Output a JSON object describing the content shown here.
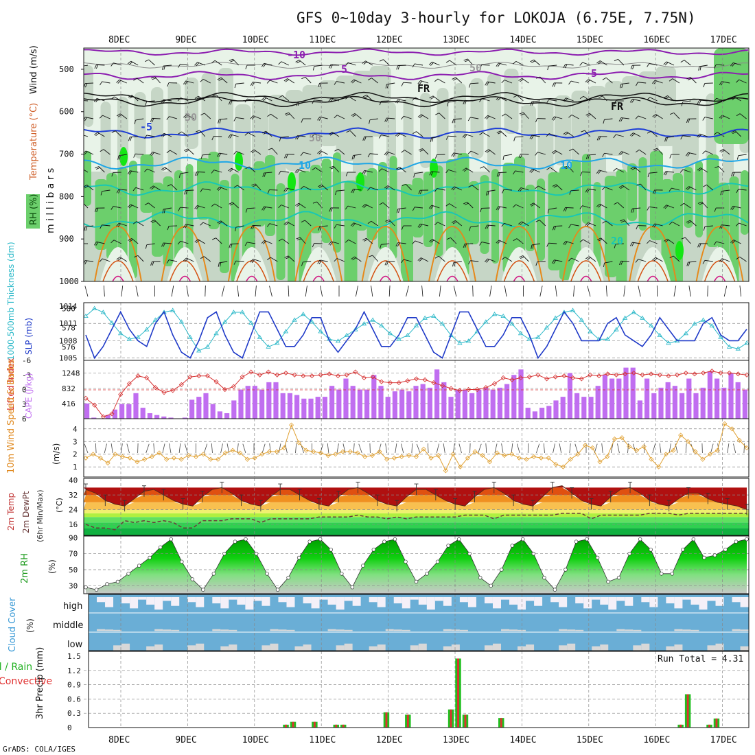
{
  "title": "GFS 0~10day 3-hourly for LOKOJA (6.75E, 7.75N)",
  "footer": "GrADS: COLA/IGES",
  "run_total": "Run Total = 4.31",
  "dates": [
    "8DEC",
    "9DEC",
    "10DEC",
    "11DEC",
    "12DEC",
    "13DEC",
    "14DEC",
    "15DEC",
    "16DEC",
    "17DEC"
  ],
  "colors": {
    "rh_light": "#e8f3e8",
    "rh_mid": "#c6d6c6",
    "rh_green": "#6ccf6c",
    "rh_bright": "#14e614",
    "temp_violet": "#8c1fb0",
    "temp_blue": "#1f3fd6",
    "temp_cyan": "#1fa6e6",
    "temp_teal": "#18c8b4",
    "temp_orange": "#e6891a",
    "slp": "#1f3ac8",
    "thickness": "#2ab8c8",
    "lifted": "#d63232",
    "cape": "#c06ef0",
    "wind10": "#e0a030",
    "dewpt": "#6a3a3a",
    "cloud": "#6aaed6",
    "cloud_gap": "#d8d8d8",
    "precip_total": "#20c020",
    "precip_conv": "#e03030"
  },
  "panels": {
    "upper": {
      "ylabel": "m i l l i b a r s",
      "legend_rh": "RH (%)",
      "legend_temp": "Temperature (°C)",
      "legend_wind": "Wind (m/s)",
      "yticks": [
        "500",
        "600",
        "700",
        "800",
        "900",
        "1000"
      ],
      "contour_labels": [
        "-10",
        "-5",
        "FR",
        "FR",
        "-5",
        "5",
        "10",
        "10",
        "20",
        "30",
        "50",
        "50"
      ]
    },
    "slp": {
      "label_thick": "1000-500mb Thickness (dm)",
      "label_slp": "SLP (mb)",
      "left_ticks": [
        "580",
        "578",
        "576"
      ],
      "right_ticks": [
        "1014",
        "1011",
        "1008",
        "1005"
      ]
    },
    "cape": {
      "label_li": "Lifted Index",
      "label_cape": "CAPE (J/kg)",
      "left_ticks": [
        "-6",
        "-3",
        "0",
        "3",
        "6"
      ],
      "right_ticks": [
        "1248",
        "832",
        "416"
      ]
    },
    "wind10": {
      "label": "10m Wind Speed & Barbs",
      "unit": "(m/s)",
      "ticks": [
        "4",
        "3",
        "2",
        "1"
      ]
    },
    "temp2m": {
      "label1": "2m Temp",
      "label2": "2m DewPt",
      "label3": "(6hr Min/Max)",
      "unit": "(°C)",
      "ticks": [
        "40",
        "32",
        "24",
        "16"
      ]
    },
    "rh2m": {
      "label": "2m RH",
      "unit": "(%)",
      "ticks": [
        "90",
        "70",
        "50",
        "30"
      ]
    },
    "cloud": {
      "label": "Cloud Cover",
      "unit": "(%)",
      "levels": [
        "high",
        "middle",
        "low"
      ]
    },
    "precip": {
      "label_total": "Total / Rain",
      "label_conv": "Convective",
      "ylabel": "3hr Precip (mm)",
      "ticks": [
        "1.5",
        "1.2",
        "0.9",
        "0.6",
        "0.3",
        "0"
      ]
    }
  },
  "chart_data": {
    "type": "line",
    "time_axis": [
      "8DEC",
      "9DEC",
      "10DEC",
      "11DEC",
      "12DEC",
      "13DEC",
      "14DEC",
      "15DEC",
      "16DEC",
      "17DEC"
    ],
    "slp_mb": [
      1009,
      1005,
      1007,
      1010,
      1013,
      1010,
      1008,
      1007,
      1011,
      1013,
      1009,
      1006,
      1005,
      1008,
      1012,
      1013,
      1009,
      1006,
      1005,
      1009,
      1013,
      1013,
      1010,
      1007,
      1007,
      1009,
      1012,
      1012,
      1008,
      1006,
      1008,
      1010,
      1013,
      1010,
      1007,
      1007,
      1009,
      1012,
      1012,
      1009,
      1006,
      1005,
      1009,
      1013,
      1013,
      1010,
      1007,
      1007,
      1009,
      1012,
      1012,
      1009,
      1005,
      1007,
      1010,
      1013,
      1011,
      1008,
      1008,
      1008,
      1011,
      1012,
      1009,
      1008,
      1007,
      1009,
      1012,
      1010,
      1008,
      1008,
      1008,
      1011,
      1012,
      1009,
      1008,
      1008,
      1010
    ],
    "thickness_dm": [
      579.2,
      580.0,
      579.6,
      578.5,
      577.4,
      576.8,
      577.0,
      577.8,
      578.8,
      579.6,
      579.8,
      578.6,
      577.0,
      575.6,
      576.0,
      577.4,
      578.6,
      579.6,
      579.6,
      578.5,
      577.0,
      576.0,
      576.4,
      577.6,
      578.8,
      579.4,
      578.6,
      577.6,
      576.8,
      576.6,
      577.2,
      577.8,
      578.4,
      578.8,
      578.2,
      577.4,
      576.8,
      577.2,
      578.2,
      579.0,
      579.2,
      578.4,
      577.2,
      576.4,
      576.6,
      577.6,
      578.6,
      579.4,
      579.2,
      578.4,
      577.4,
      576.8,
      577.0,
      578.0,
      579.0,
      579.6,
      579.8,
      578.8,
      577.6,
      576.8,
      576.8,
      577.8,
      579.0,
      579.6,
      579.0,
      578.2,
      577.2,
      576.4,
      576.6,
      577.4,
      578.4,
      578.8,
      578.2,
      577.0,
      576.0,
      575.8,
      576.4
    ],
    "lifted_index": [
      1.8,
      3.2,
      5.6,
      5.0,
      1.0,
      -1.2,
      -2.8,
      -2.4,
      -0.4,
      0.6,
      0.2,
      -1.0,
      -2.6,
      -2.8,
      -2.8,
      -1.6,
      0.0,
      -0.6,
      -2.6,
      -3.6,
      -3.0,
      -3.6,
      -3.0,
      -3.4,
      -3.0,
      -2.8,
      -2.8,
      -3.0,
      -3.2,
      -2.8,
      -3.0,
      -3.6,
      -2.4,
      -2.6,
      -1.6,
      -1.4,
      -1.4,
      -1.8,
      -2.2,
      -2.0,
      -1.4,
      -0.8,
      -0.2,
      0.2,
      0.0,
      0.0,
      -0.4,
      -1.2,
      -2.4,
      -2.0,
      -2.4,
      -2.6,
      -3.0,
      -2.2,
      -2.6,
      -2.8,
      -2.4,
      -2.2,
      -3.0,
      -2.8,
      -3.2,
      -3.0,
      -3.2,
      -3.4,
      -3.0,
      -3.2,
      -3.0,
      -2.8,
      -3.0,
      -3.4,
      -3.2,
      -3.4,
      -3.8,
      -3.4,
      -3.4,
      -3.2,
      -3.0
    ],
    "cape_jkg": [
      416,
      30,
      10,
      100,
      250,
      400,
      400,
      700,
      300,
      150,
      100,
      60,
      30,
      10,
      30,
      520,
      600,
      700,
      400,
      200,
      150,
      500,
      800,
      900,
      900,
      800,
      1000,
      1000,
      700,
      700,
      650,
      550,
      550,
      600,
      600,
      900,
      800,
      1100,
      900,
      800,
      800,
      1200,
      900,
      600,
      750,
      800,
      750,
      900,
      950,
      850,
      1350,
      1000,
      600,
      800,
      800,
      700,
      800,
      850,
      800,
      850,
      950,
      1200,
      1350,
      300,
      200,
      300,
      350,
      500,
      600,
      1250,
      700,
      600,
      600,
      900,
      1200,
      1100,
      1100,
      1400,
      1400,
      500,
      1100,
      700,
      850,
      1000,
      900,
      700,
      1100,
      700,
      850,
      1300,
      1100,
      850,
      1250,
      1000,
      800
    ],
    "wind10_ms": [
      1.7,
      2.0,
      1.7,
      1.3,
      2.0,
      1.8,
      1.7,
      1.4,
      1.6,
      1.8,
      2.1,
      1.6,
      1.7,
      1.6,
      1.9,
      1.8,
      2.0,
      1.6,
      1.6,
      2.1,
      2.3,
      2.1,
      1.6,
      1.7,
      2.0,
      2.2,
      2.2,
      2.5,
      4.3,
      2.9,
      2.3,
      2.2,
      2.1,
      1.9,
      2.0,
      2.2,
      2.2,
      2.1,
      1.8,
      1.9,
      2.2,
      1.6,
      1.7,
      1.8,
      1.9,
      1.8,
      2.4,
      1.7,
      1.9,
      0.7,
      2.0,
      1.0,
      1.7,
      2.2,
      1.9,
      1.4,
      2.1,
      1.9,
      2.0,
      1.7,
      1.6,
      1.8,
      1.7,
      1.7,
      1.2,
      1.0,
      1.6,
      2.0,
      2.7,
      2.5,
      1.4,
      1.8,
      3.2,
      3.3,
      2.6,
      2.3,
      2.6,
      1.6,
      1.0,
      2.0,
      2.3,
      3.5,
      3.0,
      2.2,
      1.6,
      2.0,
      2.3,
      4.4,
      4.0,
      3.1,
      2.5
    ],
    "temp2m_c": [
      35,
      33,
      29,
      27,
      26,
      30,
      34,
      35,
      32,
      29,
      27,
      26,
      31,
      35,
      36,
      33,
      29,
      27,
      26,
      31,
      35,
      35,
      32,
      29,
      27,
      26,
      31,
      35,
      36,
      33,
      29,
      27,
      26,
      31,
      35,
      35,
      32,
      29,
      27,
      26,
      31,
      35,
      36,
      33,
      29,
      27,
      26,
      31,
      36,
      37,
      33,
      29,
      27,
      26,
      31,
      35,
      36,
      33,
      29,
      27,
      26,
      30,
      33,
      33,
      30,
      28,
      27,
      26,
      24
    ],
    "dewpt2m_c": [
      16,
      14,
      14,
      13,
      18,
      17,
      18,
      17,
      18,
      17,
      14,
      14,
      18,
      18,
      18,
      19,
      19,
      19,
      17,
      19,
      19,
      19,
      19,
      19,
      20,
      20,
      20,
      20,
      21,
      20,
      20,
      19,
      20,
      19,
      20,
      20,
      20,
      20,
      20,
      21,
      21,
      21,
      19,
      21,
      21,
      21,
      21,
      21,
      21,
      22,
      22,
      22,
      19,
      21,
      21,
      21,
      21,
      21,
      22,
      22,
      22,
      21,
      22,
      22,
      22,
      22,
      22,
      22,
      22
    ],
    "rh2m_pct": [
      28,
      25,
      32,
      35,
      45,
      55,
      65,
      78,
      88,
      60,
      38,
      25,
      45,
      70,
      85,
      88,
      70,
      45,
      25,
      40,
      65,
      85,
      88,
      75,
      45,
      28,
      55,
      75,
      85,
      88,
      60,
      35,
      45,
      60,
      80,
      88,
      70,
      40,
      30,
      50,
      80,
      88,
      70,
      40,
      25,
      50,
      85,
      88,
      65,
      35,
      40,
      70,
      88,
      75,
      45,
      45,
      75,
      88,
      65,
      68,
      75,
      85,
      88
    ],
    "precip_total_mm": [
      0,
      0,
      0,
      0,
      0,
      0,
      0,
      0,
      0,
      0,
      0,
      0,
      0,
      0,
      0,
      0,
      0,
      0,
      0,
      0,
      0,
      0,
      0,
      0,
      0,
      0,
      0,
      0.06,
      0.12,
      0,
      0,
      0.12,
      0,
      0,
      0.06,
      0.06,
      0,
      0,
      0,
      0,
      0,
      0.32,
      0,
      0,
      0.27,
      0,
      0,
      0,
      0,
      0,
      0.38,
      1.45,
      0.27,
      0,
      0,
      0,
      0,
      0.2,
      0,
      0,
      0,
      0,
      0,
      0,
      0,
      0,
      0,
      0,
      0,
      0,
      0,
      0,
      0,
      0,
      0,
      0,
      0,
      0,
      0,
      0,
      0,
      0,
      0.06,
      0.7,
      0,
      0,
      0.06,
      0.19,
      0,
      0,
      0,
      0
    ],
    "precip_run_total_mm": 4.31
  }
}
